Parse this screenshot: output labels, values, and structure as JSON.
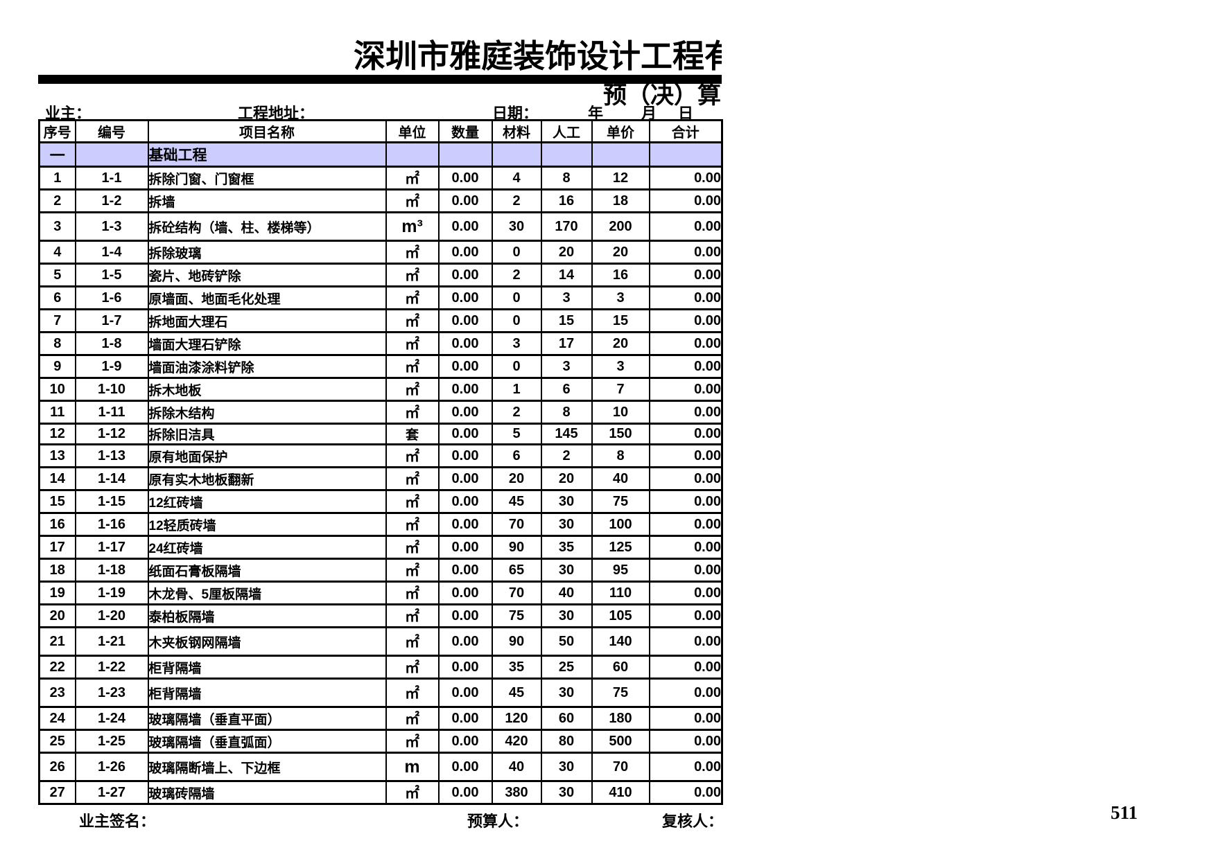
{
  "header": {
    "company_title": "深圳市雅庭装饰设计工程有",
    "subtitle": "预（决）算",
    "owner_label": "业主：",
    "address_label": "工程地址：",
    "date_label": "日期：",
    "year_label": "年",
    "month_label": "月",
    "day_label": "日"
  },
  "table": {
    "headers": [
      "序号",
      "编号",
      "项目名称",
      "单位",
      "数量",
      "材料",
      "人工",
      "单价",
      "合计"
    ],
    "section": {
      "index": "一",
      "title": "基础工程"
    },
    "rows": [
      {
        "no": "1",
        "code": "1-1",
        "name": "拆除门窗、门窗框",
        "unit": "㎡",
        "qty": "0.00",
        "material": "4",
        "labor": "8",
        "price": "12",
        "total": "0.00"
      },
      {
        "no": "2",
        "code": "1-2",
        "name": "拆墙",
        "unit": "㎡",
        "qty": "0.00",
        "material": "2",
        "labor": "16",
        "price": "18",
        "total": "0.00"
      },
      {
        "no": "3",
        "code": "1-3",
        "name": "拆砼结构（墙、柱、楼梯等）",
        "unit": "m³",
        "qty": "0.00",
        "material": "30",
        "labor": "170",
        "price": "200",
        "total": "0.00"
      },
      {
        "no": "4",
        "code": "1-4",
        "name": "拆除玻璃",
        "unit": "㎡",
        "qty": "0.00",
        "material": "0",
        "labor": "20",
        "price": "20",
        "total": "0.00"
      },
      {
        "no": "5",
        "code": "1-5",
        "name": "瓷片、地砖铲除",
        "unit": "㎡",
        "qty": "0.00",
        "material": "2",
        "labor": "14",
        "price": "16",
        "total": "0.00"
      },
      {
        "no": "6",
        "code": "1-6",
        "name": "原墙面、地面毛化处理",
        "unit": "㎡",
        "qty": "0.00",
        "material": "0",
        "labor": "3",
        "price": "3",
        "total": "0.00"
      },
      {
        "no": "7",
        "code": "1-7",
        "name": "拆地面大理石",
        "unit": "㎡",
        "qty": "0.00",
        "material": "0",
        "labor": "15",
        "price": "15",
        "total": "0.00"
      },
      {
        "no": "8",
        "code": "1-8",
        "name": "墙面大理石铲除",
        "unit": "㎡",
        "qty": "0.00",
        "material": "3",
        "labor": "17",
        "price": "20",
        "total": "0.00"
      },
      {
        "no": "9",
        "code": "1-9",
        "name": "墙面油漆涂料铲除",
        "unit": "㎡",
        "qty": "0.00",
        "material": "0",
        "labor": "3",
        "price": "3",
        "total": "0.00"
      },
      {
        "no": "10",
        "code": "1-10",
        "name": "拆木地板",
        "unit": "㎡",
        "qty": "0.00",
        "material": "1",
        "labor": "6",
        "price": "7",
        "total": "0.00"
      },
      {
        "no": "11",
        "code": "1-11",
        "name": "拆除木结构",
        "unit": "㎡",
        "qty": "0.00",
        "material": "2",
        "labor": "8",
        "price": "10",
        "total": "0.00"
      },
      {
        "no": "12",
        "code": "1-12",
        "name": "拆除旧洁具",
        "unit": "套",
        "qty": "0.00",
        "material": "5",
        "labor": "145",
        "price": "150",
        "total": "0.00"
      },
      {
        "no": "13",
        "code": "1-13",
        "name": "原有地面保护",
        "unit": "㎡",
        "qty": "0.00",
        "material": "6",
        "labor": "2",
        "price": "8",
        "total": "0.00"
      },
      {
        "no": "14",
        "code": "1-14",
        "name": "原有实木地板翻新",
        "unit": "㎡",
        "qty": "0.00",
        "material": "20",
        "labor": "20",
        "price": "40",
        "total": "0.00"
      },
      {
        "no": "15",
        "code": "1-15",
        "name": "12红砖墙",
        "unit": "㎡",
        "qty": "0.00",
        "material": "45",
        "labor": "30",
        "price": "75",
        "total": "0.00"
      },
      {
        "no": "16",
        "code": "1-16",
        "name": "12轻质砖墙",
        "unit": "㎡",
        "qty": "0.00",
        "material": "70",
        "labor": "30",
        "price": "100",
        "total": "0.00"
      },
      {
        "no": "17",
        "code": "1-17",
        "name": "24红砖墙",
        "unit": "㎡",
        "qty": "0.00",
        "material": "90",
        "labor": "35",
        "price": "125",
        "total": "0.00"
      },
      {
        "no": "18",
        "code": "1-18",
        "name": "纸面石膏板隔墙",
        "unit": "㎡",
        "qty": "0.00",
        "material": "65",
        "labor": "30",
        "price": "95",
        "total": "0.00"
      },
      {
        "no": "19",
        "code": "1-19",
        "name": "木龙骨、5厘板隔墙",
        "unit": "㎡",
        "qty": "0.00",
        "material": "70",
        "labor": "40",
        "price": "110",
        "total": "0.00"
      },
      {
        "no": "20",
        "code": "1-20",
        "name": "泰柏板隔墙",
        "unit": "㎡",
        "qty": "0.00",
        "material": "75",
        "labor": "30",
        "price": "105",
        "total": "0.00"
      },
      {
        "no": "21",
        "code": "1-21",
        "name": "木夹板钢网隔墙",
        "unit": "㎡",
        "qty": "0.00",
        "material": "90",
        "labor": "50",
        "price": "140",
        "total": "0.00"
      },
      {
        "no": "22",
        "code": "1-22",
        "name": "柜背隔墙",
        "unit": "㎡",
        "qty": "0.00",
        "material": "35",
        "labor": "25",
        "price": "60",
        "total": "0.00"
      },
      {
        "no": "23",
        "code": "1-23",
        "name": "柜背隔墙",
        "unit": "㎡",
        "qty": "0.00",
        "material": "45",
        "labor": "30",
        "price": "75",
        "total": "0.00"
      },
      {
        "no": "24",
        "code": "1-24",
        "name": "玻璃隔墙（垂直平面）",
        "unit": "㎡",
        "qty": "0.00",
        "material": "120",
        "labor": "60",
        "price": "180",
        "total": "0.00"
      },
      {
        "no": "25",
        "code": "1-25",
        "name": "玻璃隔墙（垂直弧面）",
        "unit": "㎡",
        "qty": "0.00",
        "material": "420",
        "labor": "80",
        "price": "500",
        "total": "0.00"
      },
      {
        "no": "26",
        "code": "1-26",
        "name": "玻璃隔断墙上、下边框",
        "unit": "m",
        "qty": "0.00",
        "material": "40",
        "labor": "30",
        "price": "70",
        "total": "0.00"
      },
      {
        "no": "27",
        "code": "1-27",
        "name": "玻璃砖隔墙",
        "unit": "㎡",
        "qty": "0.00",
        "material": "380",
        "labor": "30",
        "price": "410",
        "total": "0.00"
      }
    ]
  },
  "footer": {
    "owner_sign_label": "业主签名：",
    "estimator_label": "预算人：",
    "reviewer_label": "复核人：",
    "page_number": "511"
  }
}
